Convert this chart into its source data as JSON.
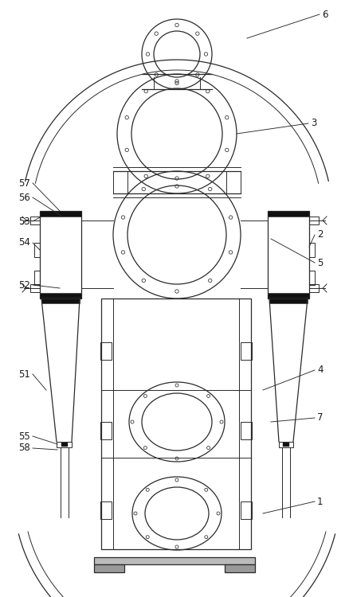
{
  "bg_color": "#ffffff",
  "line_color": "#2a2a2a",
  "label_color": "#1a1a1a",
  "fig_width": 4.38,
  "fig_height": 7.5,
  "dpi": 100
}
